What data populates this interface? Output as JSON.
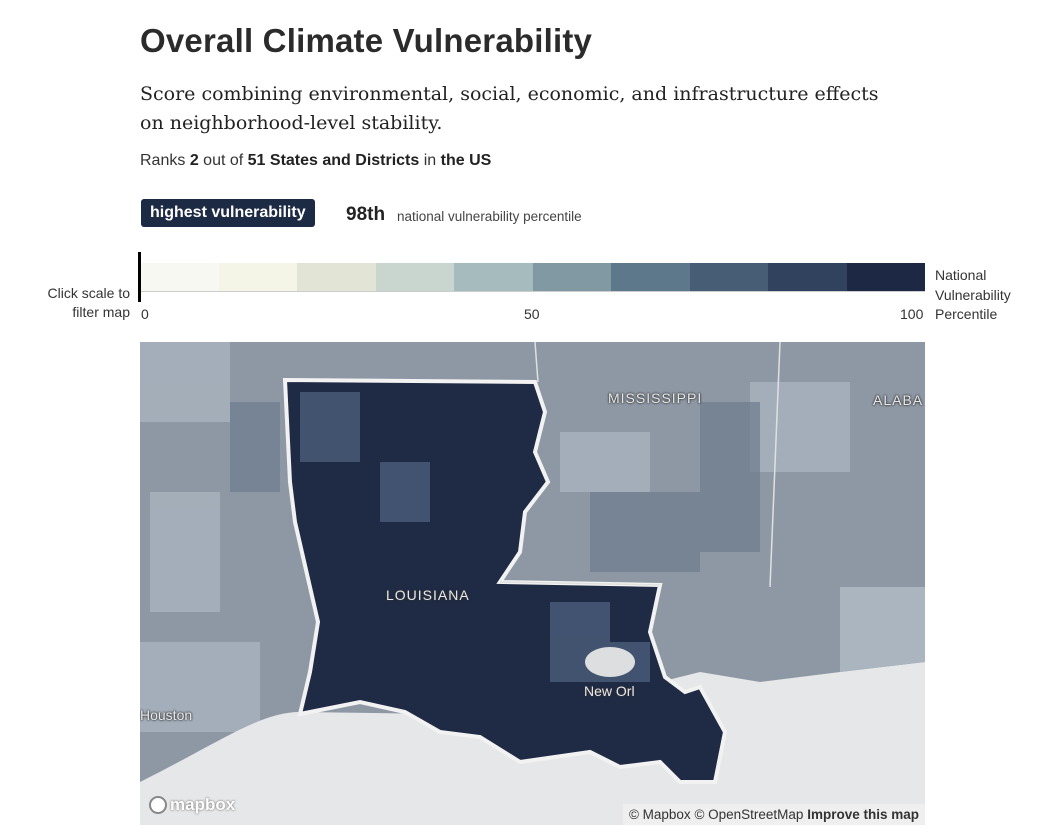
{
  "title": "Overall Climate Vulnerability",
  "description": "Score combining environmental, social, economic, and infrastructure effects on neighborhood-level stability.",
  "rank": {
    "prefix": "Ranks",
    "rank": "2",
    "middle": "out of",
    "total": "51 States and Districts",
    "in": "in",
    "region": "the US"
  },
  "badge": "highest vulnerability",
  "percentile": "98th",
  "percentile_label": "national vulnerability percentile",
  "scale": {
    "hint": "Click scale to filter map",
    "ticks": [
      "0",
      "50",
      "100"
    ],
    "title": "National Vulnerability Percentile",
    "colors": [
      "#f7f8f2",
      "#f4f5e6",
      "#e2e5d6",
      "#c9d6cf",
      "#a6bbbe",
      "#8099a3",
      "#5e788b",
      "#475c75",
      "#30425e",
      "#1d2944"
    ]
  },
  "map": {
    "labels": {
      "mississippi": "MISSISSIPPI",
      "alabama": "ALABA",
      "louisiana": "LOUISIANA",
      "new_orleans": "New Orl",
      "houston": "Houston"
    },
    "logo": "mapbox",
    "attribution": {
      "mapbox": "© Mapbox",
      "osm": "© OpenStreetMap",
      "improve": "Improve this map"
    }
  }
}
